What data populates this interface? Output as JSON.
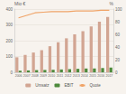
{
  "chart_data": {
    "type": "bar",
    "y_label": "Mio €",
    "y2_label": "%",
    "categories": [
      "2006",
      "2007",
      "2008",
      "2009",
      "2010",
      "2011",
      "2012",
      "2013",
      "2014",
      "2015",
      "2016",
      "2017"
    ],
    "series": [
      {
        "name": "Umsatz",
        "type": "bar",
        "color": "#d2a592",
        "values": [
          95,
          110,
          125,
          140,
          165,
          190,
          215,
          240,
          260,
          290,
          320,
          350
        ]
      },
      {
        "name": "EBIT",
        "type": "bar",
        "color": "#4e8a3c",
        "values": [
          10,
          12,
          14,
          15,
          16,
          18,
          20,
          22,
          24,
          25,
          27,
          30
        ]
      },
      {
        "name": "Quote",
        "type": "line",
        "axis": "y2",
        "color": "#f0a468",
        "values": [
          86,
          90,
          94,
          95,
          96,
          96,
          96,
          97,
          97,
          97,
          98,
          98
        ]
      }
    ],
    "ylim": [
      0,
      400
    ],
    "yticks": [
      0,
      100,
      200,
      300,
      400
    ],
    "y2lim": [
      0,
      100
    ],
    "y2ticks": [
      0,
      20,
      40,
      60,
      80,
      100
    ],
    "grid": true,
    "legend": "bottom"
  }
}
